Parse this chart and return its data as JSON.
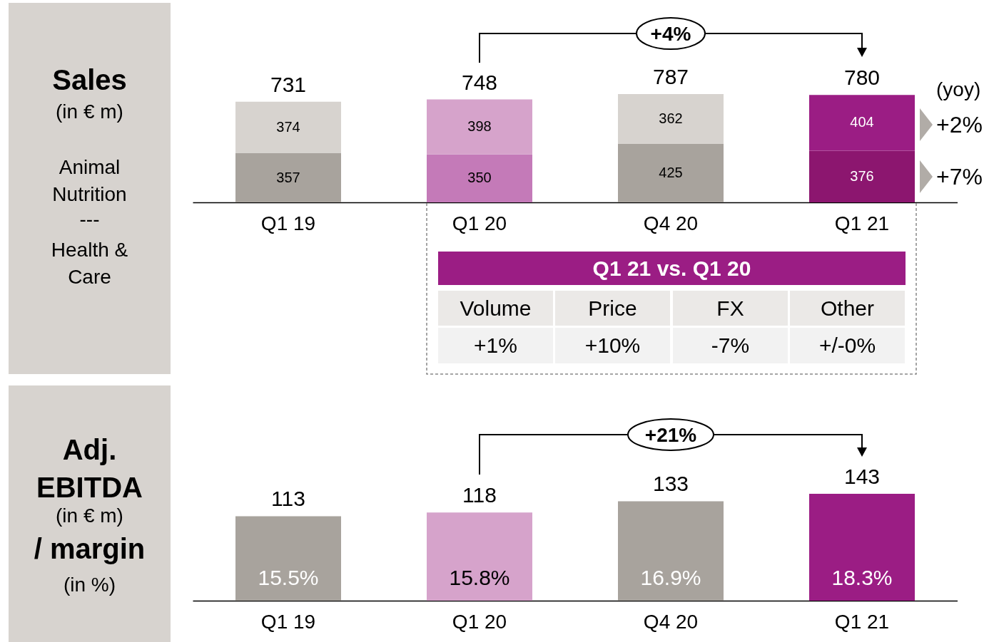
{
  "chart_data": [
    {
      "type": "bar",
      "title": "Sales",
      "subtitle": "(in € m)",
      "stacked": true,
      "categories": [
        "Q1 19",
        "Q1 20",
        "Q4 20",
        "Q1 21"
      ],
      "series": [
        {
          "colors": [
            "#a8a39d",
            "#c47ab8",
            "#a8a39d",
            "#8c166f"
          ],
          "values": [
            357,
            350,
            425,
            376
          ]
        },
        {
          "colors": [
            "#d7d3cf",
            "#d6a3cb",
            "#d7d3cf",
            "#9b1d84"
          ],
          "values": [
            374,
            398,
            362,
            404
          ]
        }
      ],
      "data_labels": true,
      "totals": [
        "731",
        "748",
        "787",
        "780"
      ],
      "tick_labels": "x",
      "grid": false,
      "annotations": [
        "Animal Nutrition",
        "---",
        "Health & Care",
        "(yoy)",
        "+2%",
        "+7%",
        "+4%",
        "Q1 21 vs. Q1 20",
        "Volume",
        "Price",
        "FX",
        "Other",
        "+1%",
        "+10%",
        "-7%",
        "+/-0%"
      ]
    },
    {
      "type": "bar",
      "title": "Adj. EBITDA",
      "subtitle": "(in € m)",
      "categories": [
        "Q1 19",
        "Q1 20",
        "Q4 20",
        "Q1 21"
      ],
      "series": [
        {
          "colors": [
            "#a8a39d",
            "#d6a3cb",
            "#a8a39d",
            "#9b1d84"
          ],
          "values": [
            113,
            118,
            133,
            143
          ]
        }
      ],
      "data_labels": true,
      "tick_labels": "x",
      "grid": false,
      "annotations": [
        "/ margin",
        "(in %)",
        "+21%",
        "15.5%",
        "15.8%",
        "16.9%",
        "18.3%"
      ]
    }
  ]
}
